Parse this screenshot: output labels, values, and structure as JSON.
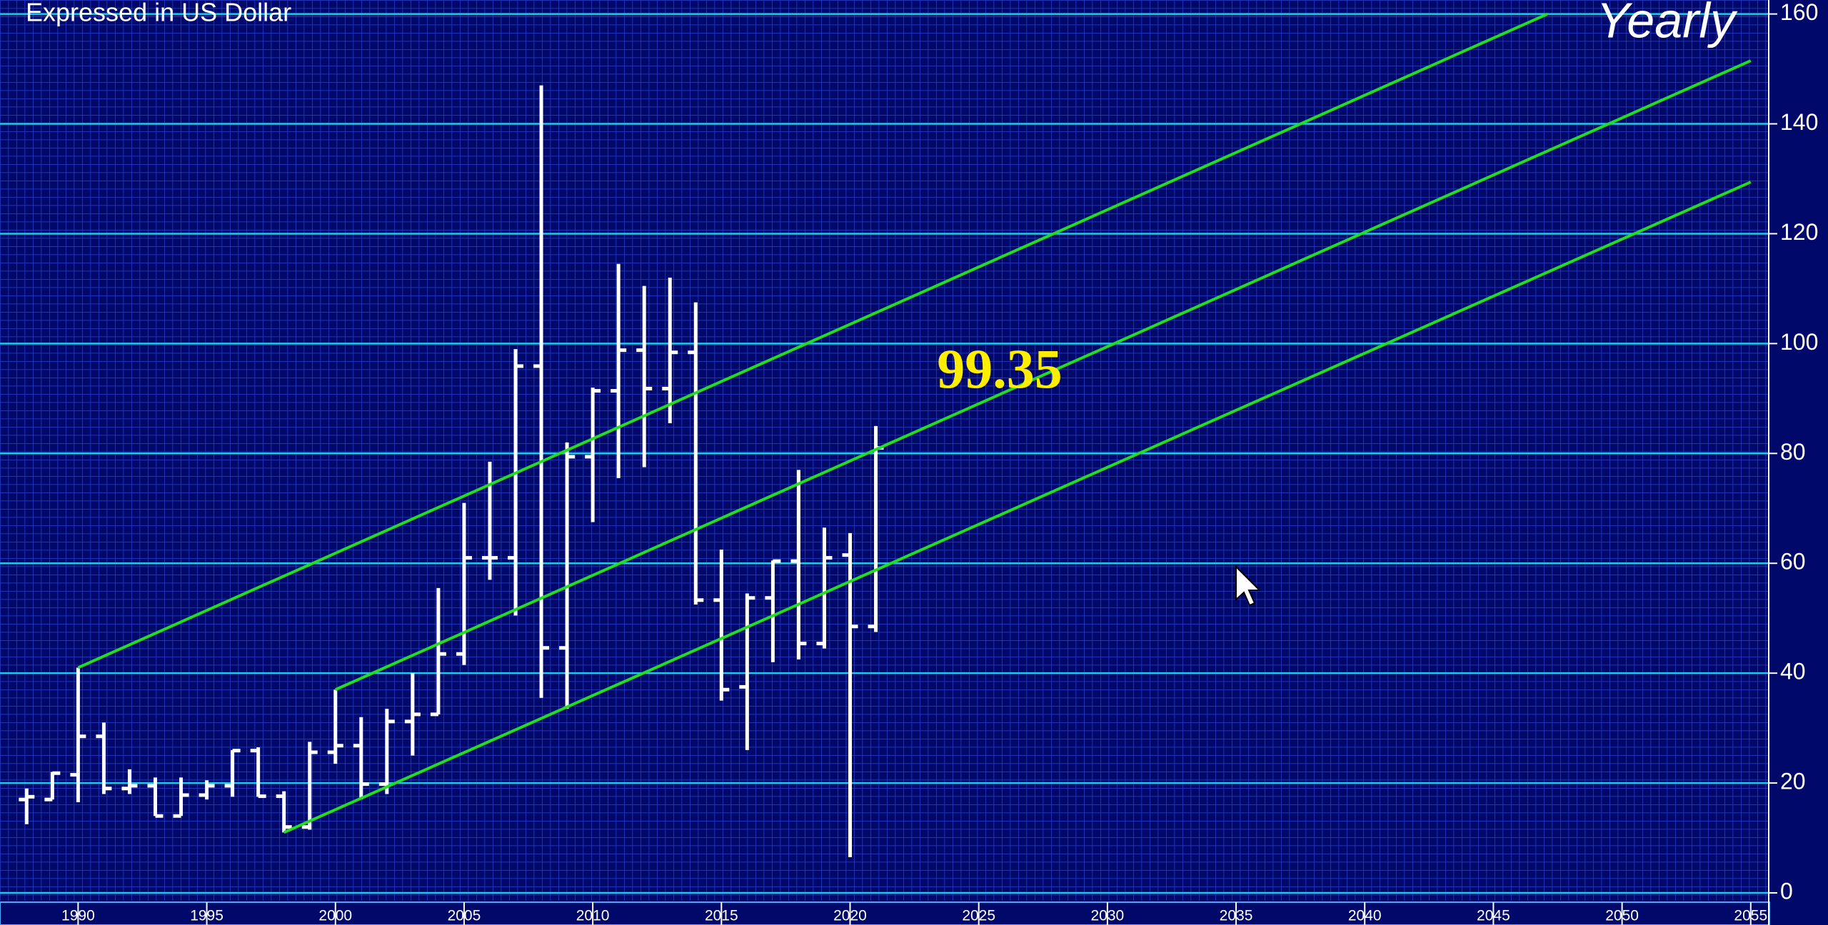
{
  "chart_data": {
    "type": "ohlc",
    "subtitle": "Expressed in US Dollar",
    "title": "Yearly",
    "x": [
      1988,
      1989,
      1990,
      1991,
      1992,
      1993,
      1994,
      1995,
      1996,
      1997,
      1998,
      1999,
      2000,
      2001,
      2002,
      2003,
      2004,
      2005,
      2006,
      2007,
      2008,
      2009,
      2010,
      2011,
      2012,
      2013,
      2014,
      2015,
      2016,
      2017,
      2018,
      2019,
      2020,
      2021
    ],
    "open": [
      17,
      17,
      21.5,
      28.5,
      19,
      19.5,
      14,
      17.8,
      19.5,
      25.9,
      17.6,
      12,
      25.6,
      26.8,
      19.8,
      31.2,
      32.5,
      43.5,
      61,
      61,
      95.9,
      44.6,
      79.4,
      91.4,
      98.8,
      91.8,
      98.4,
      53.3,
      37.5,
      53.7,
      60.4,
      45.4,
      61.5,
      48.5
    ],
    "high": [
      19,
      22,
      41,
      31,
      22.5,
      21,
      21,
      20.5,
      26,
      26.5,
      18.5,
      27.5,
      37,
      32,
      33.5,
      40,
      55.5,
      71,
      78.5,
      99,
      147,
      82,
      92,
      114.5,
      110.5,
      112,
      107.5,
      62.5,
      54.5,
      60.5,
      77,
      66.5,
      65.5,
      85
    ],
    "low": [
      12.5,
      17,
      16.5,
      18,
      18,
      14,
      14,
      17,
      17.5,
      17.5,
      11,
      11.5,
      23.5,
      17,
      18,
      25,
      32.5,
      41.5,
      57,
      50.5,
      35.5,
      33.5,
      67.5,
      75.5,
      77.5,
      85.5,
      52.5,
      35,
      26,
      42,
      42.5,
      44.5,
      6.5,
      47.5
    ],
    "close": [
      17.5,
      21.8,
      28.5,
      19,
      19.5,
      14,
      17.8,
      19.5,
      25.9,
      17.6,
      12,
      25.6,
      26.8,
      19.8,
      31.2,
      32.5,
      43.5,
      61,
      61,
      95.9,
      44.6,
      79.4,
      91.4,
      98.8,
      91.8,
      98.4,
      53.3,
      37,
      53.7,
      60.4,
      45.4,
      61,
      48.5,
      81
    ],
    "color": "#ffffff",
    "lines": [
      {
        "x": [
          1990,
          2047.1
        ],
        "values": [
          41,
          160
        ],
        "color": "#22dd22"
      },
      {
        "x": [
          2000,
          2055
        ],
        "values": [
          37,
          151.5
        ],
        "color": "#22dd22"
      },
      {
        "x": [
          1998,
          2055
        ],
        "values": [
          11,
          129.4
        ],
        "color": "#22dd22"
      }
    ],
    "annotation": "99.35",
    "xlim": [
      1987.5,
      2055.7
    ],
    "xticks": [
      1990,
      1995,
      2000,
      2005,
      2010,
      2015,
      2020,
      2025,
      2030,
      2035,
      2040,
      2045,
      2050,
      2055
    ],
    "ylim": [
      0,
      160
    ],
    "yticks": [
      0,
      20,
      40,
      60,
      80,
      100,
      120,
      140,
      160
    ],
    "grid": true
  }
}
